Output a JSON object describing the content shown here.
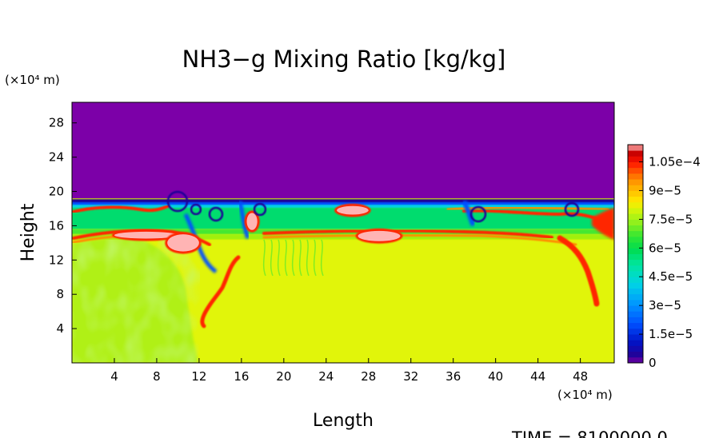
{
  "chart_data": {
    "type": "heatmap",
    "title": "NH3−g Mixing Ratio [kg/kg]",
    "xlabel": "Length",
    "ylabel": "Height",
    "x_unit_label": "(×10⁴ m)",
    "y_unit_label": "(×10⁴ m)",
    "x_ticks": [
      4,
      8,
      12,
      16,
      20,
      24,
      28,
      32,
      36,
      40,
      44,
      48
    ],
    "y_ticks": [
      4,
      8,
      12,
      16,
      20,
      24,
      28
    ],
    "xlim": [
      0,
      51.2
    ],
    "ylim": [
      0,
      30.4
    ],
    "grid": false,
    "colorbar": {
      "placement": "right",
      "range": [
        0,
        0.000114
      ],
      "tick_values": [
        0,
        1.5e-05,
        3e-05,
        4.5e-05,
        6e-05,
        7.5e-05,
        9e-05,
        0.000105
      ],
      "tick_labels": [
        "0",
        "1.5e−5",
        "3e−5",
        "4.5e−5",
        "6e−5",
        "7.5e−5",
        "9e−5",
        "1.05e−4"
      ]
    },
    "annotation": "TIME = 8100000.0",
    "features": [
      {
        "region": "upper layer",
        "x": [
          0,
          51.2
        ],
        "y": [
          19,
          30.4
        ],
        "value": 0
      },
      {
        "region": "lower layer",
        "x": [
          0,
          51.2
        ],
        "y": [
          0,
          15
        ],
        "value": 7.5e-05
      },
      {
        "region": "high band",
        "x": [
          0,
          51.2
        ],
        "y": [
          15,
          18.6
        ],
        "value": 6.5e-05
      },
      {
        "region": "peak patch",
        "x": [
          4,
          10
        ],
        "y": [
          14.5,
          15.3
        ],
        "value": 0.00011
      },
      {
        "region": "peak patch",
        "x": [
          27,
          31
        ],
        "y": [
          14.2,
          15.4
        ],
        "value": 0.00011
      },
      {
        "region": "peak patch",
        "x": [
          25,
          28
        ],
        "y": [
          17.3,
          18.3
        ],
        "value": 0.00011
      },
      {
        "region": "peak patch",
        "x": [
          16.5,
          17.5
        ],
        "y": [
          15.5,
          17.5
        ],
        "value": 0.00011
      },
      {
        "region": "peak patch",
        "x": [
          9,
          12
        ],
        "y": [
          13,
          15
        ],
        "value": 0.00011
      }
    ],
    "colors": [
      "#7c00a8",
      "#1a0096",
      "#0050ff",
      "#00d2e6",
      "#00dc6e",
      "#44e830",
      "#a0f010",
      "#e1f50a",
      "#ffd200",
      "#ff8c00",
      "#ff2800",
      "#c80000",
      "#ffb4b4"
    ]
  }
}
